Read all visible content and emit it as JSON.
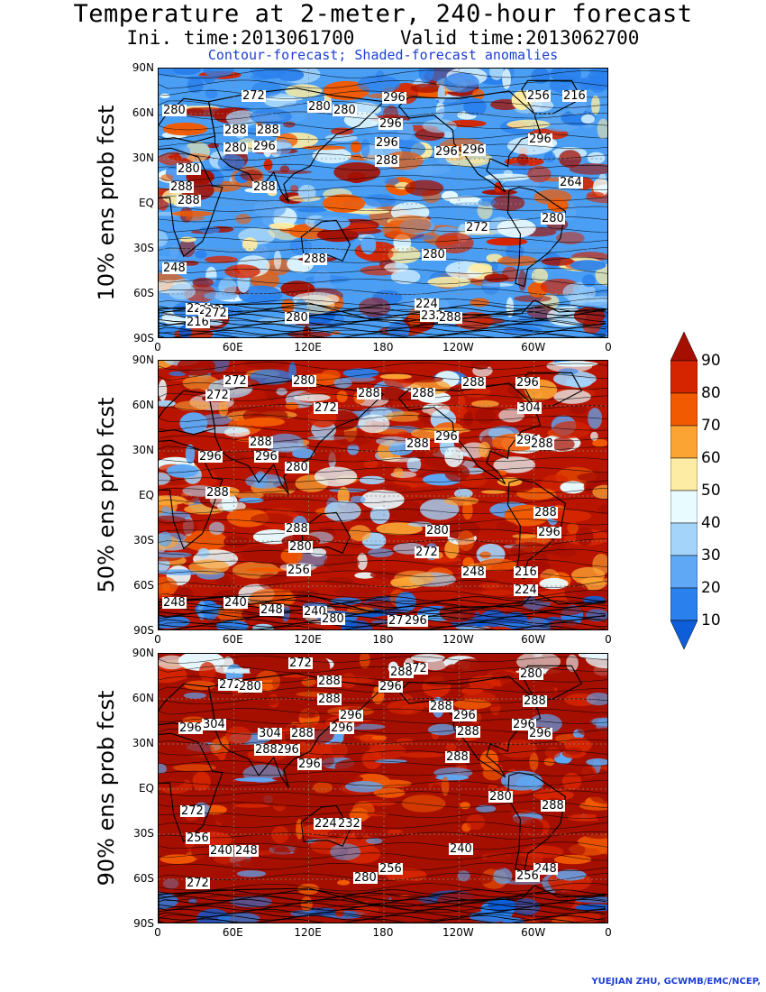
{
  "header": {
    "title": "Temperature at 2-meter, 240-hour forecast",
    "subtitle": "Ini. time:2013061700    Valid time:2013062700",
    "description": "Contour-forecast; Shaded-forecast anomalies"
  },
  "credit": "YUEJIAN ZHU, GCWMB/EMC/NCEP,",
  "colors": {
    "anom_low": "#1565d8",
    "anom_mid_low": "#4a9ff5",
    "neutral": "#ffffff",
    "anom_high": "#f07a22",
    "anom_extreme": "#b30f00",
    "land_contour": "#000000"
  },
  "chart_data": [
    {
      "type": "heatmap",
      "panel": "10% ens prob fcst",
      "ylabel": "10% ens prob fcst",
      "yticks": [
        "90N",
        "60N",
        "30N",
        "EQ",
        "30S",
        "60S",
        "90S"
      ],
      "xticks": [
        "0",
        "60E",
        "120E",
        "180",
        "120W",
        "60W",
        "0"
      ],
      "contour_labels": [
        "272",
        "280",
        "280",
        "280",
        "288",
        "288",
        "280",
        "288",
        "296",
        "296",
        "296",
        "296",
        "280",
        "288",
        "288",
        "288",
        "296",
        "296",
        "296",
        "280",
        "288",
        "272",
        "264",
        "280",
        "256",
        "216",
        "248",
        "224",
        "232",
        "216",
        "224",
        "232",
        "288",
        "280",
        "272"
      ]
    },
    {
      "type": "heatmap",
      "panel": "50% ens prob fcst",
      "ylabel": "50% ens prob fcst",
      "yticks": [
        "90N",
        "60N",
        "30N",
        "EQ",
        "30S",
        "60S",
        "90S"
      ],
      "xticks": [
        "0",
        "60E",
        "120E",
        "180",
        "120W",
        "60W",
        "0"
      ],
      "contour_labels": [
        "272",
        "272",
        "280",
        "288",
        "288",
        "272",
        "288",
        "296",
        "304",
        "288",
        "296",
        "280",
        "288",
        "296",
        "296",
        "288",
        "296",
        "288",
        "288",
        "296",
        "280",
        "288",
        "280",
        "272",
        "256",
        "248",
        "216",
        "224",
        "248",
        "240",
        "248",
        "240",
        "280",
        "272",
        "296"
      ]
    },
    {
      "type": "heatmap",
      "panel": "90% ens prob fcst",
      "ylabel": "90% ens prob fcst",
      "yticks": [
        "90N",
        "60N",
        "30N",
        "EQ",
        "30S",
        "60S",
        "90S"
      ],
      "xticks": [
        "0",
        "60E",
        "120E",
        "180",
        "120W",
        "60W",
        "0"
      ],
      "contour_labels": [
        "272",
        "272",
        "288",
        "288",
        "272",
        "280",
        "288",
        "296",
        "296",
        "288",
        "296",
        "296",
        "304",
        "304",
        "288",
        "296",
        "296",
        "296",
        "288",
        "288",
        "296",
        "296",
        "280",
        "288",
        "288",
        "280",
        "288",
        "272",
        "256",
        "240",
        "248",
        "224",
        "232",
        "240",
        "256",
        "248",
        "256",
        "280",
        "272"
      ]
    }
  ],
  "colorbar": {
    "labels": [
      "90",
      "80",
      "70",
      "60",
      "50",
      "40",
      "30",
      "20",
      "10"
    ],
    "colors": [
      "#a50f00",
      "#d52500",
      "#f25a00",
      "#fba433",
      "#fdeca3",
      "#e8fbff",
      "#a4d4fa",
      "#5fa8f5",
      "#2a80ec",
      "#0d5ed8"
    ]
  }
}
